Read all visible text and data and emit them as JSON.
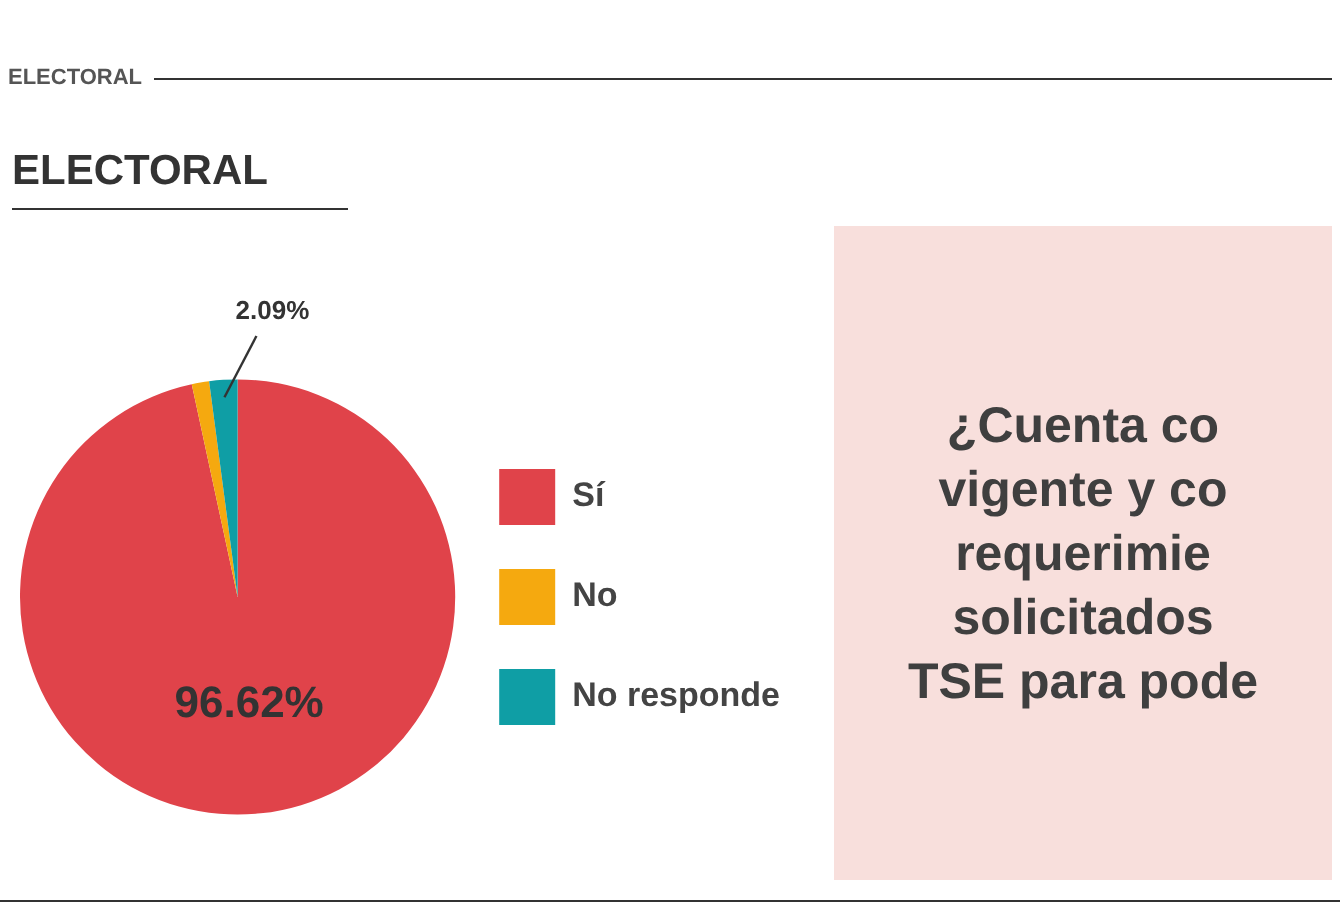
{
  "chart_data": {
    "type": "pie",
    "title": "ELECTORAL",
    "categories": [
      "Sí",
      "No",
      "No responde"
    ],
    "values": [
      96.62,
      1.29,
      2.09
    ],
    "colors": [
      "#e0434a",
      "#f5a90f",
      "#0f9ea5"
    ],
    "value_labels": [
      "96.62%",
      null,
      "2.09%"
    ],
    "legend": "right",
    "annotations": [
      "ELECTORAL",
      "¿Cuenta co\nvigente y co\nrequerimie\nsolicitados\nTSE para pode"
    ]
  }
}
